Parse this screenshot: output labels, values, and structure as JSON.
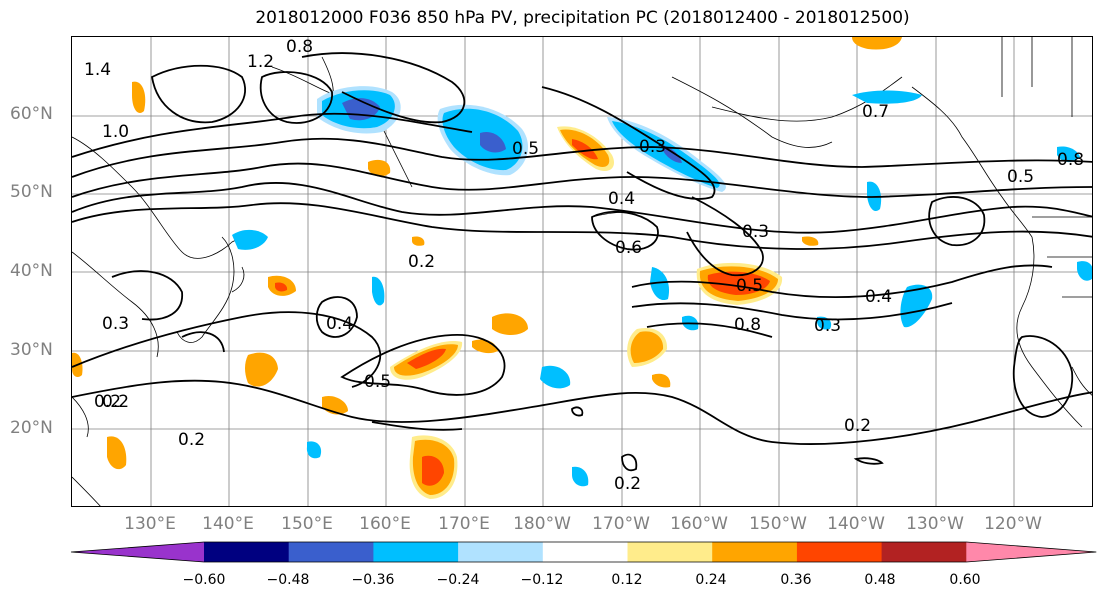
{
  "title": "2018012000 F036 850 hPa PV, precipitation PC (2018012400 - 2018012500)",
  "latitude_labels": [
    "60°N",
    "50°N",
    "40°N",
    "30°N",
    "20°N"
  ],
  "longitude_labels": [
    "130°E",
    "140°E",
    "150°E",
    "160°E",
    "170°E",
    "180°W",
    "170°W",
    "160°W",
    "150°W",
    "140°W",
    "130°W",
    "120°W"
  ],
  "contour_labels": [
    "0.8",
    "1.2",
    "1.4",
    "1.0",
    "0.5",
    "0.3",
    "0.4",
    "0.6",
    "0.7",
    "0.2",
    "0.8",
    "0.2",
    "0.2",
    "0.3",
    "0.5",
    "0.3",
    "0.5",
    "0.8",
    "0.4",
    "0.2",
    "0.2",
    "0.2",
    "0.4",
    "0.5",
    "0.3"
  ],
  "colorbar": {
    "tick_labels": [
      "−0.60",
      "−0.48",
      "−0.36",
      "−0.24",
      "−0.12",
      "0.12",
      "0.24",
      "0.36",
      "0.48",
      "0.60"
    ],
    "colors": [
      "#9933cc",
      "#000080",
      "#3a5fcd",
      "#00bfff",
      "#b0e2ff",
      "#ffffff",
      "#ffec8b",
      "#ffa500",
      "#ff4500",
      "#b22222",
      "#ff88aa"
    ]
  },
  "shading_colors": {
    "light_blue": "#b0e2ff",
    "sky_blue": "#00bfff",
    "royal_blue": "#3a5fcd",
    "purple": "#6a5acd",
    "yellow": "#ffec8b",
    "orange": "#ffa500",
    "red": "#ff4500",
    "dark_red": "#b22222"
  }
}
